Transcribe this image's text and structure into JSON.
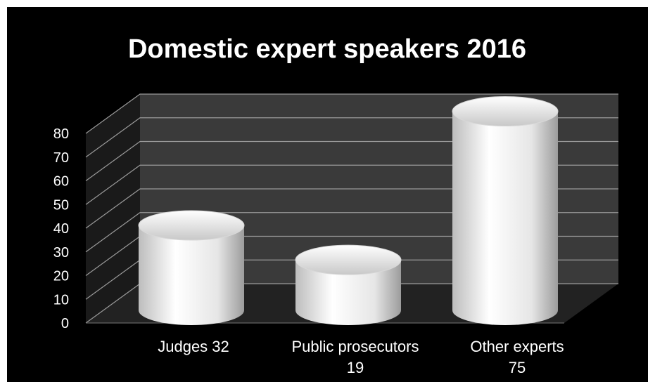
{
  "chart_data": {
    "type": "bar",
    "title": "Domestic expert speakers 2016",
    "categories": [
      [
        "Judges 32"
      ],
      [
        "Public prosecutors",
        "19"
      ],
      [
        "Other experts",
        "75"
      ]
    ],
    "values": [
      32,
      19,
      75
    ],
    "yticks": [
      "0",
      "10",
      "20",
      "30",
      "40",
      "50",
      "60",
      "70",
      "80"
    ],
    "ylim": [
      0,
      80
    ],
    "grid": true,
    "bar_shape": "cylinder",
    "colors": {
      "background": "#000000",
      "wall": "#3a3a3a",
      "floor": "#222222",
      "gridline": "#9a9a9a",
      "bar_light": "#ffffff",
      "bar_shadow": "#9c9c9c",
      "text": "#ffffff"
    }
  }
}
